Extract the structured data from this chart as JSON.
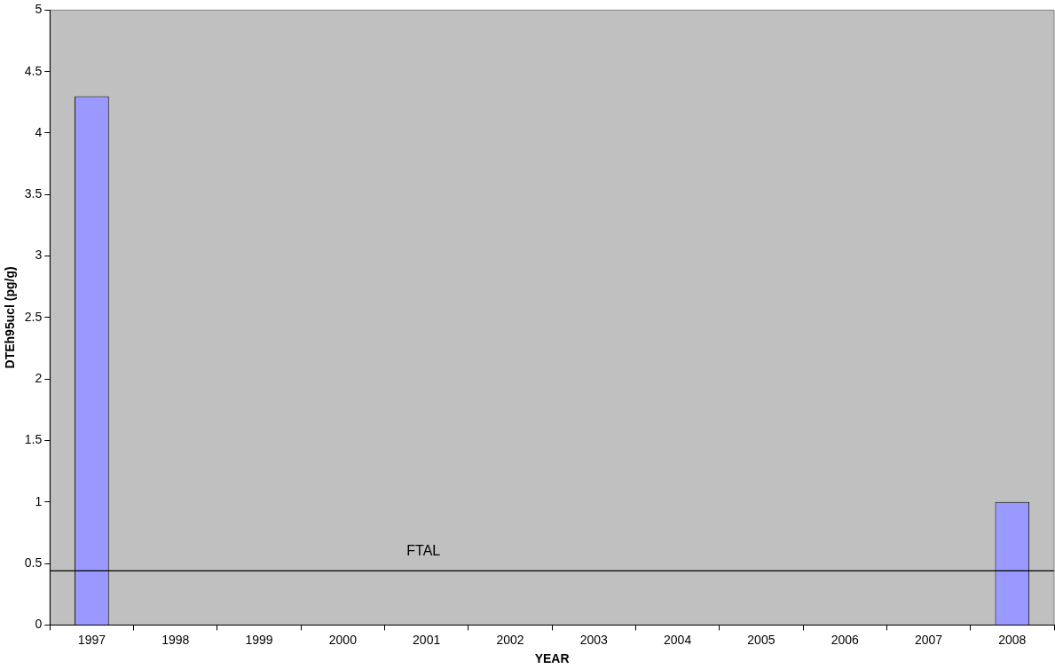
{
  "chart_data": {
    "type": "bar",
    "xlabel": "YEAR",
    "ylabel": "DTEh95ucl (pg/g)",
    "categories": [
      "1997",
      "1998",
      "1999",
      "2000",
      "2001",
      "2002",
      "2003",
      "2004",
      "2005",
      "2006",
      "2007",
      "2008"
    ],
    "values": [
      4.3,
      null,
      null,
      null,
      null,
      null,
      null,
      null,
      null,
      null,
      null,
      1.0
    ],
    "color": "#9999ff",
    "ylim": [
      0,
      5
    ],
    "yticks": [
      0,
      0.5,
      1,
      1.5,
      2,
      2.5,
      3,
      3.5,
      4,
      4.5,
      5
    ],
    "ref_lines": [
      {
        "axis": "y",
        "value": 0.44,
        "label": "FTAL",
        "color": "#000000"
      }
    ]
  }
}
